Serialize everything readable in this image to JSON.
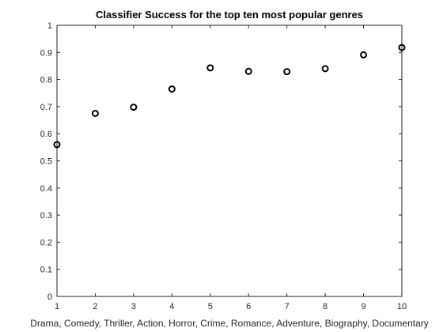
{
  "chart_data": {
    "type": "scatter",
    "title": "Classifier Success for the top ten most popular genres",
    "xlabel": "Drama, Comedy, Thriller, Action, Horror, Crime, Romance, Adventure, Biography, Documentary",
    "ylabel": "",
    "x": [
      1,
      2,
      3,
      4,
      5,
      6,
      7,
      8,
      9,
      10
    ],
    "y": [
      0.56,
      0.675,
      0.698,
      0.765,
      0.843,
      0.83,
      0.829,
      0.84,
      0.891,
      0.918
    ],
    "xlim": [
      1,
      10
    ],
    "ylim": [
      0,
      1
    ],
    "xticks": [
      1,
      2,
      3,
      4,
      5,
      6,
      7,
      8,
      9,
      10
    ],
    "yticks": [
      0,
      0.1,
      0.2,
      0.3,
      0.4,
      0.5,
      0.6,
      0.7,
      0.8,
      0.9,
      1
    ],
    "ytick_labels": [
      "0",
      "0.1",
      "0.2",
      "0.3",
      "0.4",
      "0.5",
      "0.6",
      "0.7",
      "0.8",
      "0.9",
      "1"
    ],
    "grid": false,
    "marker": "circle",
    "marker_color": "#000000"
  }
}
